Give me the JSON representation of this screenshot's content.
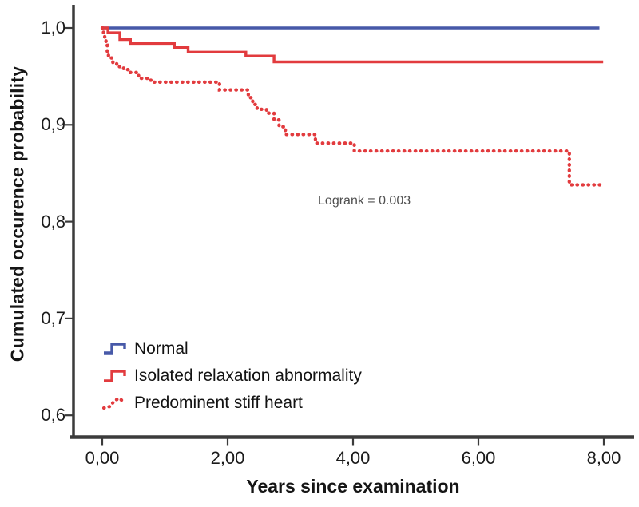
{
  "chart_data": {
    "type": "line",
    "subtype": "kaplan-meier-step",
    "title": "",
    "xlabel": "Years since examination",
    "ylabel": "Cumulated occurence probability",
    "xlim": [
      0,
      8
    ],
    "ylim": [
      0.6,
      1.0
    ],
    "grid": false,
    "x_ticks": {
      "values": [
        0,
        2,
        4,
        6,
        8
      ],
      "labels": [
        "0,00",
        "2,00",
        "4,00",
        "6,00",
        "8,00"
      ]
    },
    "y_ticks": {
      "values": [
        1.0,
        0.9,
        0.8,
        0.7,
        0.6
      ],
      "labels": [
        "1,0",
        "0,9",
        "0,8",
        "0,7",
        "0,6"
      ]
    },
    "annotation": {
      "text": "Logrank = 0.003",
      "x": 3.44,
      "y": 0.821,
      "color": "#4f4f4f"
    },
    "legend_position": "lower-left",
    "series": [
      {
        "name": "Normal",
        "color": "#4759a8",
        "style": "solid",
        "x_end": 7.93,
        "steps": [
          [
            0,
            1.0
          ]
        ]
      },
      {
        "name": "Isolated relaxation abnormality",
        "color": "#e23b3e",
        "style": "solid",
        "x_end": 7.99,
        "steps": [
          [
            0,
            1.0
          ],
          [
            0.09,
            0.995
          ],
          [
            0.28,
            0.988
          ],
          [
            0.45,
            0.984
          ],
          [
            1.15,
            0.98
          ],
          [
            1.37,
            0.975
          ],
          [
            2.29,
            0.971
          ],
          [
            2.74,
            0.965
          ]
        ]
      },
      {
        "name": "Predominent stiff heart",
        "color": "#e23b3e",
        "style": "dotted",
        "x_end": 7.99,
        "steps": [
          [
            0,
            1.0
          ],
          [
            0.02,
            0.995
          ],
          [
            0.04,
            0.989
          ],
          [
            0.06,
            0.982
          ],
          [
            0.08,
            0.975
          ],
          [
            0.1,
            0.969
          ],
          [
            0.17,
            0.963
          ],
          [
            0.23,
            0.96
          ],
          [
            0.34,
            0.957
          ],
          [
            0.45,
            0.954
          ],
          [
            0.58,
            0.948
          ],
          [
            0.72,
            0.946
          ],
          [
            0.79,
            0.944
          ],
          [
            1.87,
            0.936
          ],
          [
            2.33,
            0.928
          ],
          [
            2.4,
            0.921
          ],
          [
            2.47,
            0.916
          ],
          [
            2.62,
            0.912
          ],
          [
            2.74,
            0.905
          ],
          [
            2.82,
            0.898
          ],
          [
            2.92,
            0.89
          ],
          [
            3.4,
            0.881
          ],
          [
            4.02,
            0.873
          ],
          [
            7.45,
            0.838
          ]
        ]
      }
    ],
    "axis_color": "#3b3b3b"
  }
}
